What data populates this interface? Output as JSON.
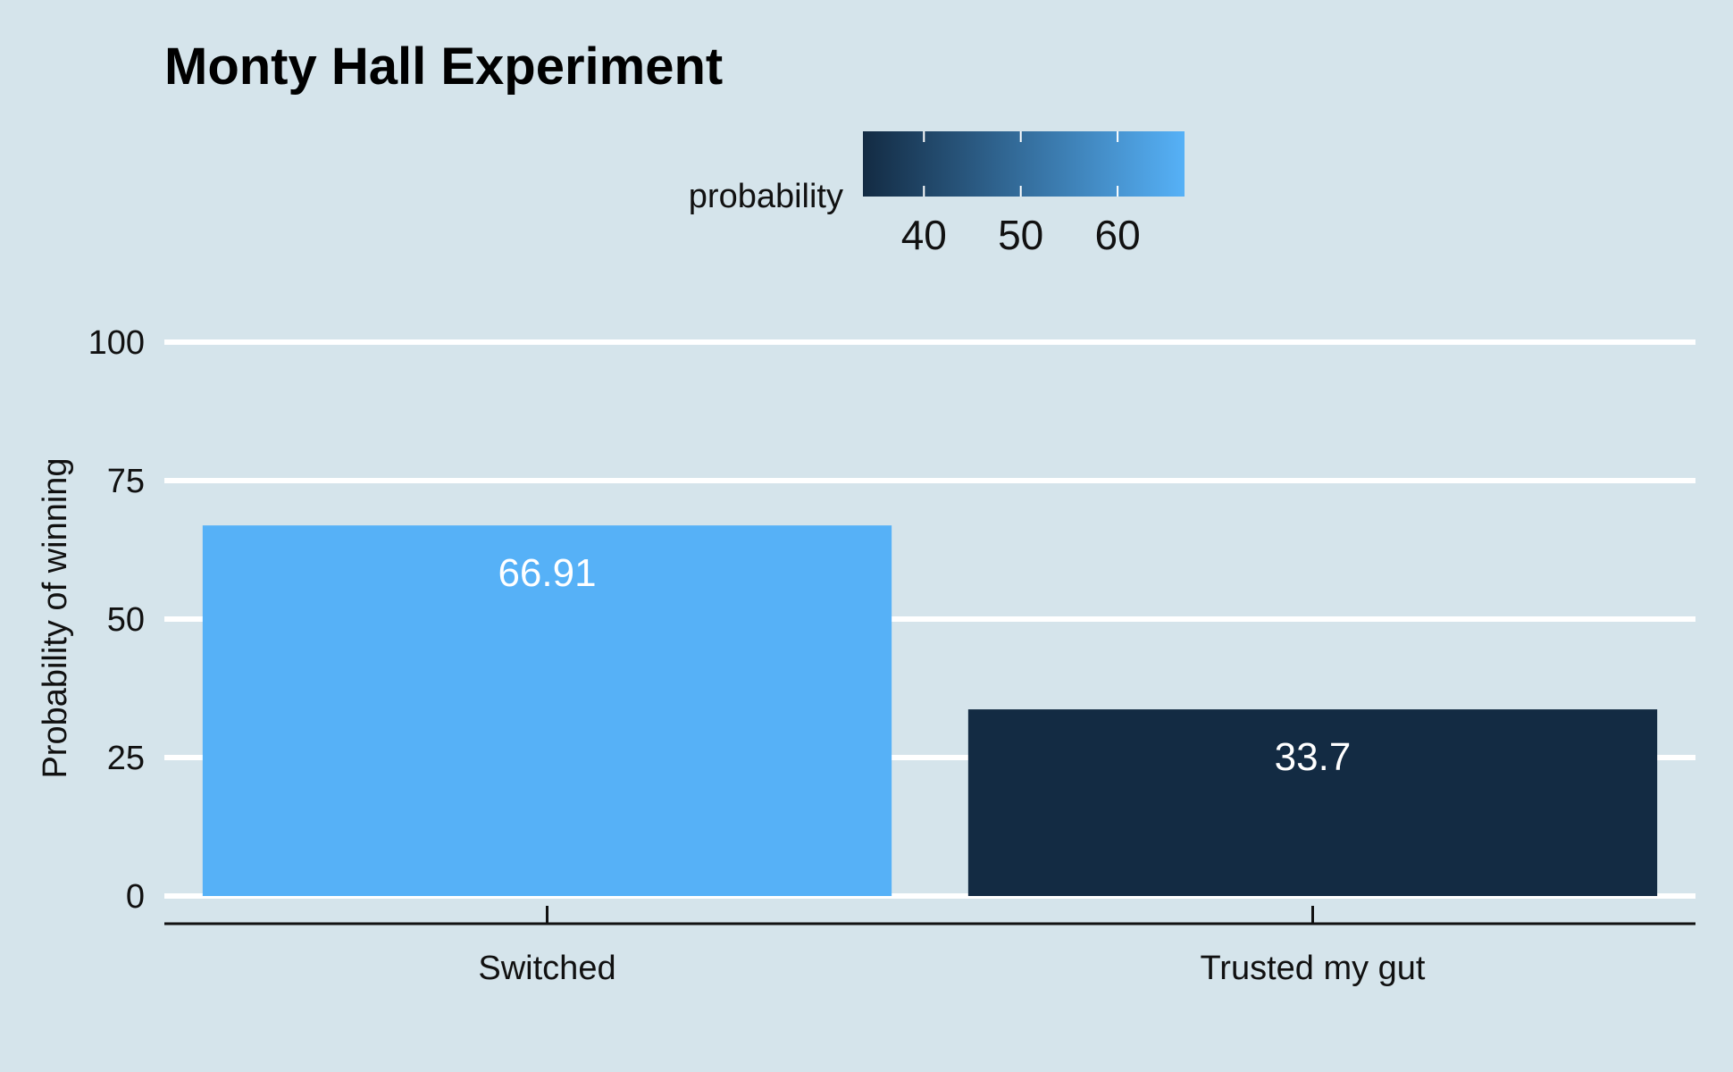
{
  "chart_data": {
    "type": "bar",
    "title": "Monty Hall Experiment",
    "xlabel": "",
    "ylabel": "Probability of winning",
    "categories": [
      "Switched",
      "Trusted my gut"
    ],
    "values": [
      66.91,
      33.7
    ],
    "value_labels": [
      "66.91",
      "33.7"
    ],
    "ylim": [
      0,
      100
    ],
    "yticks": [
      0,
      25,
      50,
      75,
      100
    ],
    "grid": "horizontal",
    "legend": {
      "title": "probability",
      "placement": "top",
      "type": "colorbar",
      "ticks": [
        40,
        50,
        60
      ],
      "range": [
        33.7,
        66.91
      ],
      "low_color": "#132b43",
      "high_color": "#56b1f7"
    },
    "colors": {
      "background": "#d5e4eb",
      "grid": "#ffffff",
      "axis": "#111111"
    }
  }
}
